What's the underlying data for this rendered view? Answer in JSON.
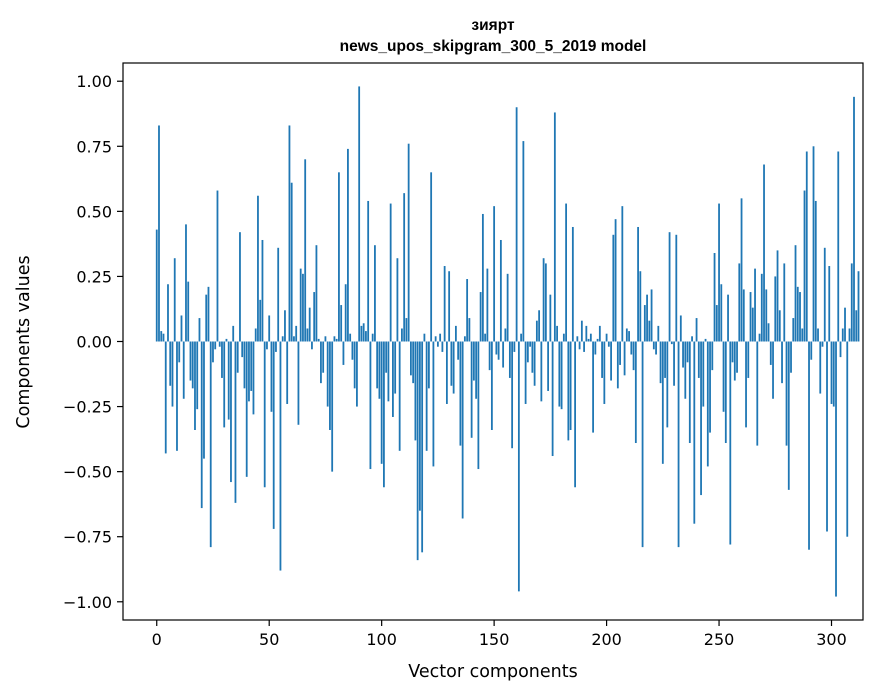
{
  "chart_data": {
    "type": "bar",
    "title": "зиярт",
    "subtitle": "news_upos_skipgram_300_5_2019 model",
    "xlabel": "Vector components",
    "ylabel": "Components values",
    "xlim": [
      -15,
      314
    ],
    "ylim": [
      -1.07,
      1.07
    ],
    "xticks": [
      0,
      50,
      100,
      150,
      200,
      250,
      300
    ],
    "yticks": [
      -1.0,
      -0.75,
      -0.5,
      -0.25,
      0.0,
      0.25,
      0.5,
      0.75,
      1.0
    ],
    "color": "#1f77b4",
    "values": [
      0.43,
      0.83,
      0.04,
      0.03,
      -0.43,
      0.22,
      -0.17,
      -0.25,
      0.32,
      -0.42,
      -0.08,
      0.1,
      -0.22,
      0.45,
      0.23,
      -0.15,
      -0.18,
      -0.34,
      -0.26,
      0.09,
      -0.64,
      -0.45,
      0.18,
      0.21,
      -0.79,
      -0.08,
      -0.03,
      0.58,
      -0.02,
      -0.14,
      -0.33,
      0.01,
      -0.3,
      -0.54,
      0.06,
      -0.62,
      -0.12,
      0.42,
      -0.06,
      -0.18,
      -0.52,
      -0.23,
      -0.19,
      -0.28,
      0.05,
      0.56,
      0.16,
      0.39,
      -0.56,
      -0.03,
      0.1,
      -0.27,
      -0.72,
      -0.04,
      0.36,
      -0.88,
      0.02,
      0.12,
      -0.24,
      0.83,
      0.61,
      0.02,
      0.06,
      -0.32,
      0.28,
      0.26,
      0.7,
      0.05,
      0.13,
      -0.03,
      0.19,
      0.37,
      0.01,
      -0.16,
      -0.12,
      0.02,
      -0.25,
      -0.34,
      -0.5,
      0.02,
      0.01,
      0.65,
      0.14,
      -0.09,
      0.22,
      0.74,
      0.03,
      -0.07,
      -0.18,
      -0.25,
      0.98,
      0.06,
      0.07,
      0.04,
      0.54,
      -0.49,
      0.03,
      0.37,
      -0.18,
      -0.22,
      -0.47,
      -0.56,
      -0.12,
      -0.23,
      0.53,
      -0.29,
      -0.2,
      0.32,
      -0.42,
      0.05,
      0.57,
      0.09,
      0.76,
      -0.13,
      -0.16,
      -0.38,
      -0.84,
      -0.65,
      -0.81,
      0.03,
      -0.42,
      -0.18,
      0.65,
      -0.48,
      0.02,
      -0.02,
      0.03,
      -0.04,
      0.29,
      -0.24,
      0.27,
      -0.17,
      -0.2,
      0.06,
      -0.07,
      -0.4,
      -0.68,
      0.02,
      0.24,
      0.09,
      -0.37,
      -0.15,
      -0.22,
      -0.49,
      0.19,
      0.49,
      0.03,
      0.28,
      -0.11,
      -0.34,
      0.52,
      -0.05,
      -0.07,
      0.39,
      -0.1,
      0.05,
      0.26,
      -0.14,
      -0.41,
      -0.04,
      0.9,
      -0.96,
      0.03,
      0.77,
      -0.24,
      -0.08,
      -0.02,
      -0.12,
      -0.17,
      0.08,
      0.12,
      -0.23,
      0.32,
      0.3,
      -0.19,
      0.18,
      -0.44,
      0.88,
      0.06,
      -0.25,
      -0.26,
      0.03,
      0.53,
      -0.38,
      -0.34,
      0.44,
      -0.56,
      0.02,
      -0.03,
      0.08,
      -0.04,
      0.06,
      0.01,
      0.03,
      -0.35,
      -0.05,
      0.01,
      0.06,
      -0.14,
      -0.24,
      0.03,
      -0.02,
      -0.15,
      0.41,
      0.47,
      -0.18,
      -0.09,
      0.52,
      -0.13,
      0.05,
      0.04,
      -0.05,
      -0.11,
      -0.39,
      0.44,
      0.27,
      -0.79,
      0.14,
      0.18,
      0.08,
      0.2,
      -0.03,
      -0.05,
      0.06,
      -0.16,
      -0.47,
      -0.14,
      -0.33,
      0.42,
      -0.01,
      -0.17,
      0.41,
      -0.79,
      0.1,
      -0.1,
      -0.22,
      -0.08,
      -0.39,
      0.02,
      -0.7,
      0.09,
      -0.14,
      -0.59,
      -0.25,
      0.01,
      -0.48,
      -0.35,
      -0.11,
      0.34,
      0.14,
      0.53,
      0.22,
      -0.27,
      -0.39,
      0.18,
      -0.78,
      -0.08,
      -0.15,
      -0.12,
      0.3,
      0.55,
      0.2,
      -0.33,
      -0.14,
      0.19,
      0.13,
      0.28,
      -0.4,
      0.03,
      0.26,
      0.68,
      0.2,
      0.07,
      -0.09,
      -0.22,
      0.25,
      0.35,
      0.12,
      -0.16,
      0.3,
      -0.4,
      -0.57,
      -0.12,
      0.09,
      0.37,
      0.21,
      0.19,
      0.05,
      0.58,
      0.73,
      -0.8,
      -0.07,
      0.75,
      0.54,
      0.05,
      -0.2,
      -0.02,
      0.36,
      -0.73,
      0.29,
      -0.24,
      -0.25,
      -0.98,
      0.73,
      -0.06,
      0.05,
      0.13,
      -0.75,
      0.05,
      0.3,
      0.94,
      0.12,
      0.27
    ]
  }
}
